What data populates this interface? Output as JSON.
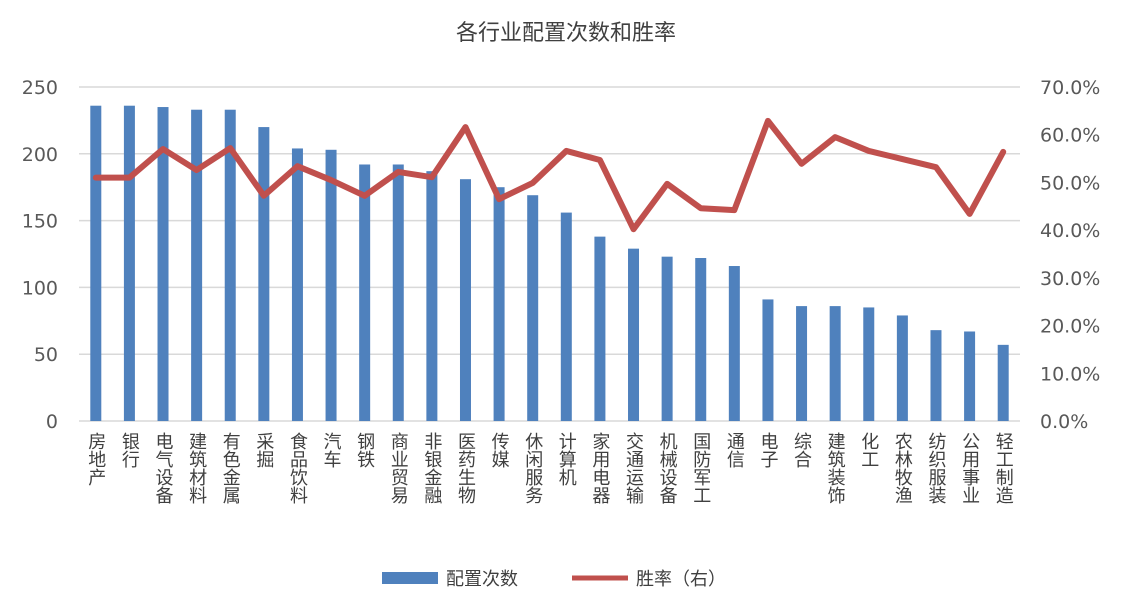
{
  "chart_data": {
    "type": "bar+line",
    "title": "各行业配置次数和胜率",
    "categories": [
      "房地产",
      "银行",
      "电气设备",
      "建筑材料",
      "有色金属",
      "采掘",
      "食品饮料",
      "汽车",
      "钢铁",
      "商业贸易",
      "非银金融",
      "医药生物",
      "传媒",
      "休闲服务",
      "计算机",
      "家用电器",
      "交通运输",
      "机械设备",
      "国防军工",
      "通信",
      "电子",
      "综合",
      "建筑装饰",
      "化工",
      "农林牧渔",
      "纺织服装",
      "公用事业",
      "轻工制造"
    ],
    "series": [
      {
        "name": "配置次数",
        "type": "bar",
        "axis": "left",
        "color": "#4F81BD",
        "values": [
          236,
          236,
          235,
          233,
          233,
          220,
          204,
          203,
          192,
          192,
          187,
          181,
          175,
          169,
          156,
          138,
          129,
          123,
          122,
          116,
          91,
          86,
          86,
          85,
          79,
          68,
          67,
          57
        ]
      },
      {
        "name": "胜率（右）",
        "type": "line",
        "axis": "right",
        "color": "#C0504D",
        "values": [
          51.0,
          51.0,
          57.0,
          52.6,
          57.2,
          47.2,
          53.4,
          50.5,
          47.2,
          52.2,
          51.1,
          61.6,
          46.5,
          49.9,
          56.6,
          54.7,
          40.2,
          49.7,
          44.6,
          44.2,
          62.9,
          53.9,
          59.5,
          56.6,
          54.9,
          53.2,
          43.4,
          56.4
        ]
      }
    ],
    "ylim_left": [
      0,
      250
    ],
    "yticks_left": [
      "0",
      "50",
      "100",
      "150",
      "200",
      "250"
    ],
    "ylim_right": [
      0,
      70
    ],
    "yticks_right": [
      "0.0%",
      "10.0%",
      "20.0%",
      "30.0%",
      "40.0%",
      "50.0%",
      "60.0%",
      "70.0%"
    ],
    "grid": true,
    "legend": "bottom"
  }
}
